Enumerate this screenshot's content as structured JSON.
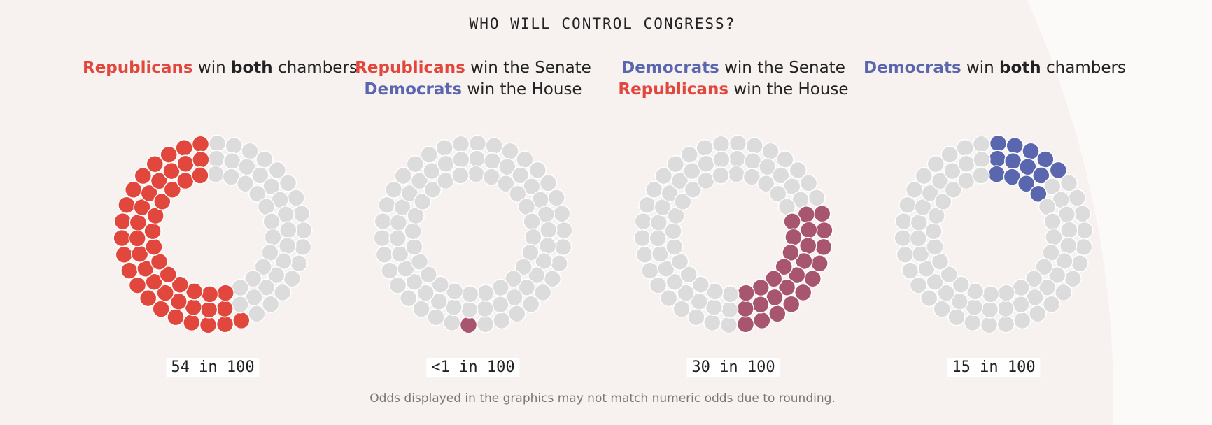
{
  "header": {
    "title": "WHO WILL CONTROL CONGRESS?"
  },
  "footnote": "Odds displayed in the graphics may not match numeric odds due to rounding.",
  "colors": {
    "background": "#f7f1ef",
    "republican": "#e2473d",
    "democrat": "#5a66ae",
    "split": "#a85670",
    "empty": "#dcdcdc"
  },
  "chart_data": [
    {
      "type": "dot-donut",
      "label": {
        "line1": {
          "party": "Republicans",
          "text1": " win ",
          "bold": "both",
          "text2": " chambers"
        }
      },
      "odds_label": "54 in 100",
      "dots_filled": 54,
      "dots_total": 100,
      "fill_color": "#e2473d",
      "fill_start": "top",
      "direction": "counterclockwise"
    },
    {
      "type": "dot-donut",
      "label": {
        "line1": {
          "party": "Republicans",
          "text": " win the Senate"
        },
        "line2": {
          "party": "Democrats",
          "text": " win the House"
        }
      },
      "odds_label": "<1 in 100",
      "dots_filled": 1,
      "dots_total": 100,
      "fill_color": "#a85670",
      "fill_start": "bottom",
      "direction": "clockwise"
    },
    {
      "type": "dot-donut",
      "label": {
        "line1": {
          "party": "Democrats",
          "text": " win the Senate"
        },
        "line2": {
          "party": "Republicans",
          "text": " win the House"
        }
      },
      "odds_label": "30 in 100",
      "dots_filled": 30,
      "dots_total": 100,
      "fill_color": "#a85670",
      "fill_start": "bottom",
      "direction": "counterclockwise"
    },
    {
      "type": "dot-donut",
      "label": {
        "line1": {
          "party": "Democrats",
          "text1": " win ",
          "bold": "both",
          "text2": " chambers"
        }
      },
      "odds_label": "15 in 100",
      "dots_filled": 15,
      "dots_total": 100,
      "fill_color": "#5a66ae",
      "fill_start": "top",
      "direction": "clockwise"
    }
  ]
}
